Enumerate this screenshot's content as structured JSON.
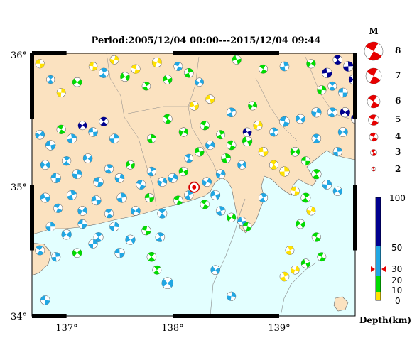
{
  "title": "Period:2005/12/04 00:00---2015/12/04 09:44",
  "axes": {
    "lat_labels": [
      "36°",
      "35°",
      "34°"
    ],
    "lon_labels": [
      "137°",
      "138°",
      "139°"
    ]
  },
  "legend": {
    "magnitude_header": "M",
    "magnitudes": [
      "8",
      "7",
      "6",
      "5",
      "4",
      "3",
      "2"
    ],
    "depth_ticks": [
      "100",
      "50",
      "30",
      "20",
      "10",
      "0"
    ],
    "depth_unit": "Depth(km)"
  },
  "colors": {
    "land": "#fbe2c0",
    "sea": "#e3ffff",
    "depth_0_10": "#ffe100",
    "depth_10_30": "#00dc00",
    "depth_30_50": "#21a7e3",
    "depth_50_100": "#00008f",
    "epicenter": "#e60000"
  },
  "events": [
    {
      "lon": 136.75,
      "lat": 35.92,
      "m": 3.5,
      "c": "#ffe100"
    },
    {
      "lon": 136.85,
      "lat": 35.8,
      "m": 3.2,
      "c": "#21a7e3"
    },
    {
      "lon": 136.95,
      "lat": 35.7,
      "m": 3.4,
      "c": "#ffe100"
    },
    {
      "lon": 137.1,
      "lat": 35.78,
      "m": 3.6,
      "c": "#00dc00"
    },
    {
      "lon": 137.25,
      "lat": 35.9,
      "m": 3.3,
      "c": "#ffe100"
    },
    {
      "lon": 137.35,
      "lat": 35.85,
      "m": 3.8,
      "c": "#21a7e3"
    },
    {
      "lon": 137.45,
      "lat": 35.95,
      "m": 3.4,
      "c": "#ffe100"
    },
    {
      "lon": 137.55,
      "lat": 35.82,
      "m": 3.6,
      "c": "#00dc00"
    },
    {
      "lon": 137.65,
      "lat": 35.88,
      "m": 3.5,
      "c": "#ffe100"
    },
    {
      "lon": 137.75,
      "lat": 35.75,
      "m": 3.3,
      "c": "#00dc00"
    },
    {
      "lon": 137.85,
      "lat": 35.93,
      "m": 3.7,
      "c": "#ffe100"
    },
    {
      "lon": 137.95,
      "lat": 35.8,
      "m": 3.5,
      "c": "#00dc00"
    },
    {
      "lon": 138.05,
      "lat": 35.9,
      "m": 3.4,
      "c": "#21a7e3"
    },
    {
      "lon": 138.15,
      "lat": 35.85,
      "m": 3.6,
      "c": "#00dc00"
    },
    {
      "lon": 138.25,
      "lat": 35.78,
      "m": 3.3,
      "c": "#21a7e3"
    },
    {
      "lon": 138.6,
      "lat": 35.95,
      "m": 3.5,
      "c": "#00dc00"
    },
    {
      "lon": 138.85,
      "lat": 35.88,
      "m": 3.4,
      "c": "#00dc00"
    },
    {
      "lon": 139.05,
      "lat": 35.9,
      "m": 3.6,
      "c": "#21a7e3"
    },
    {
      "lon": 139.3,
      "lat": 35.92,
      "m": 3.5,
      "c": "#00dc00"
    },
    {
      "lon": 139.45,
      "lat": 35.85,
      "m": 3.8,
      "c": "#00008f"
    },
    {
      "lon": 139.55,
      "lat": 35.95,
      "m": 3.6,
      "c": "#00008f"
    },
    {
      "lon": 139.65,
      "lat": 35.9,
      "m": 3.9,
      "c": "#00008f"
    },
    {
      "lon": 139.7,
      "lat": 35.8,
      "m": 3.7,
      "c": "#00008f"
    },
    {
      "lon": 139.6,
      "lat": 35.7,
      "m": 3.6,
      "c": "#21a7e3"
    },
    {
      "lon": 139.5,
      "lat": 35.75,
      "m": 3.4,
      "c": "#21a7e3"
    },
    {
      "lon": 139.4,
      "lat": 35.72,
      "m": 3.5,
      "c": "#00dc00"
    },
    {
      "lon": 139.62,
      "lat": 35.55,
      "m": 3.8,
      "c": "#00008f"
    },
    {
      "lon": 139.72,
      "lat": 35.5,
      "m": 3.6,
      "c": "#00008f"
    },
    {
      "lon": 139.5,
      "lat": 35.55,
      "m": 3.7,
      "c": "#21a7e3"
    },
    {
      "lon": 139.35,
      "lat": 35.55,
      "m": 3.8,
      "c": "#21a7e3"
    },
    {
      "lon": 139.2,
      "lat": 35.5,
      "m": 3.6,
      "c": "#21a7e3"
    },
    {
      "lon": 139.05,
      "lat": 35.48,
      "m": 3.9,
      "c": "#21a7e3"
    },
    {
      "lon": 138.95,
      "lat": 35.4,
      "m": 3.4,
      "c": "#21a7e3"
    },
    {
      "lon": 138.8,
      "lat": 35.45,
      "m": 3.5,
      "c": "#ffe100"
    },
    {
      "lon": 138.7,
      "lat": 35.33,
      "m": 3.8,
      "c": "#00dc00"
    },
    {
      "lon": 138.55,
      "lat": 35.3,
      "m": 3.6,
      "c": "#00dc00"
    },
    {
      "lon": 138.45,
      "lat": 35.38,
      "m": 3.4,
      "c": "#00dc00"
    },
    {
      "lon": 138.35,
      "lat": 35.3,
      "m": 3.5,
      "c": "#21a7e3"
    },
    {
      "lon": 138.25,
      "lat": 35.25,
      "m": 3.6,
      "c": "#00dc00"
    },
    {
      "lon": 138.15,
      "lat": 35.2,
      "m": 3.3,
      "c": "#21a7e3"
    },
    {
      "lon": 138.5,
      "lat": 35.2,
      "m": 3.7,
      "c": "#00dc00"
    },
    {
      "lon": 138.65,
      "lat": 35.15,
      "m": 3.4,
      "c": "#21a7e3"
    },
    {
      "lon": 138.85,
      "lat": 35.25,
      "m": 3.6,
      "c": "#ffe100"
    },
    {
      "lon": 138.95,
      "lat": 35.15,
      "m": 3.5,
      "c": "#ffe100"
    },
    {
      "lon": 139.05,
      "lat": 35.1,
      "m": 3.8,
      "c": "#ffe100"
    },
    {
      "lon": 139.15,
      "lat": 35.25,
      "m": 3.6,
      "c": "#00dc00"
    },
    {
      "lon": 139.25,
      "lat": 35.18,
      "m": 3.4,
      "c": "#00dc00"
    },
    {
      "lon": 139.35,
      "lat": 35.08,
      "m": 3.8,
      "c": "#00dc00"
    },
    {
      "lon": 139.45,
      "lat": 35.0,
      "m": 3.6,
      "c": "#21a7e3"
    },
    {
      "lon": 139.55,
      "lat": 34.95,
      "m": 3.5,
      "c": "#21a7e3"
    },
    {
      "lon": 139.15,
      "lat": 34.95,
      "m": 3.5,
      "c": "#ffe100"
    },
    {
      "lon": 139.25,
      "lat": 34.9,
      "m": 3.7,
      "c": "#00dc00"
    },
    {
      "lon": 139.3,
      "lat": 34.8,
      "m": 3.4,
      "c": "#ffe100"
    },
    {
      "lon": 139.2,
      "lat": 34.7,
      "m": 3.6,
      "c": "#00dc00"
    },
    {
      "lon": 139.35,
      "lat": 34.6,
      "m": 3.5,
      "c": "#00dc00"
    },
    {
      "lon": 139.1,
      "lat": 34.5,
      "m": 3.4,
      "c": "#ffe100"
    },
    {
      "lon": 139.15,
      "lat": 34.35,
      "m": 3.3,
      "c": "#ffe100"
    },
    {
      "lon": 139.25,
      "lat": 34.4,
      "m": 3.5,
      "c": "#00dc00"
    },
    {
      "lon": 139.4,
      "lat": 34.45,
      "m": 3.4,
      "c": "#00dc00"
    },
    {
      "lon": 139.05,
      "lat": 34.3,
      "m": 3.6,
      "c": "#ffe100"
    },
    {
      "lon": 136.75,
      "lat": 35.38,
      "m": 3.6,
      "c": "#21a7e3"
    },
    {
      "lon": 136.85,
      "lat": 35.3,
      "m": 3.8,
      "c": "#21a7e3"
    },
    {
      "lon": 136.95,
      "lat": 35.42,
      "m": 3.5,
      "c": "#00dc00"
    },
    {
      "lon": 137.05,
      "lat": 35.35,
      "m": 3.7,
      "c": "#21a7e3"
    },
    {
      "lon": 137.15,
      "lat": 35.45,
      "m": 3.4,
      "c": "#00008f"
    },
    {
      "lon": 137.25,
      "lat": 35.4,
      "m": 3.6,
      "c": "#21a7e3"
    },
    {
      "lon": 137.35,
      "lat": 35.48,
      "m": 3.5,
      "c": "#00008f"
    },
    {
      "lon": 137.45,
      "lat": 35.35,
      "m": 3.7,
      "c": "#21a7e3"
    },
    {
      "lon": 136.8,
      "lat": 35.15,
      "m": 3.6,
      "c": "#21a7e3"
    },
    {
      "lon": 136.9,
      "lat": 35.05,
      "m": 3.8,
      "c": "#21a7e3"
    },
    {
      "lon": 137.0,
      "lat": 35.18,
      "m": 3.5,
      "c": "#21a7e3"
    },
    {
      "lon": 137.1,
      "lat": 35.08,
      "m": 3.7,
      "c": "#21a7e3"
    },
    {
      "lon": 137.2,
      "lat": 35.2,
      "m": 3.6,
      "c": "#21a7e3"
    },
    {
      "lon": 137.3,
      "lat": 35.02,
      "m": 3.8,
      "c": "#21a7e3"
    },
    {
      "lon": 137.4,
      "lat": 35.12,
      "m": 3.5,
      "c": "#21a7e3"
    },
    {
      "lon": 137.5,
      "lat": 35.05,
      "m": 3.6,
      "c": "#21a7e3"
    },
    {
      "lon": 137.6,
      "lat": 35.15,
      "m": 3.4,
      "c": "#00dc00"
    },
    {
      "lon": 137.7,
      "lat": 35.0,
      "m": 3.7,
      "c": "#21a7e3"
    },
    {
      "lon": 137.8,
      "lat": 35.1,
      "m": 3.5,
      "c": "#21a7e3"
    },
    {
      "lon": 137.9,
      "lat": 35.02,
      "m": 3.6,
      "c": "#21a7e3"
    },
    {
      "lon": 136.8,
      "lat": 34.9,
      "m": 3.7,
      "c": "#21a7e3"
    },
    {
      "lon": 136.92,
      "lat": 34.82,
      "m": 3.5,
      "c": "#21a7e3"
    },
    {
      "lon": 137.05,
      "lat": 34.92,
      "m": 3.8,
      "c": "#21a7e3"
    },
    {
      "lon": 137.15,
      "lat": 34.8,
      "m": 3.6,
      "c": "#21a7e3"
    },
    {
      "lon": 137.28,
      "lat": 34.88,
      "m": 3.7,
      "c": "#21a7e3"
    },
    {
      "lon": 137.4,
      "lat": 34.78,
      "m": 3.5,
      "c": "#21a7e3"
    },
    {
      "lon": 137.52,
      "lat": 34.9,
      "m": 3.8,
      "c": "#21a7e3"
    },
    {
      "lon": 137.65,
      "lat": 34.8,
      "m": 3.6,
      "c": "#21a7e3"
    },
    {
      "lon": 137.78,
      "lat": 34.9,
      "m": 3.5,
      "c": "#00dc00"
    },
    {
      "lon": 137.9,
      "lat": 34.78,
      "m": 3.7,
      "c": "#21a7e3"
    },
    {
      "lon": 136.85,
      "lat": 34.68,
      "m": 3.6,
      "c": "#21a7e3"
    },
    {
      "lon": 137.0,
      "lat": 34.62,
      "m": 3.8,
      "c": "#21a7e3"
    },
    {
      "lon": 137.15,
      "lat": 34.7,
      "m": 3.5,
      "c": "#21a7e3"
    },
    {
      "lon": 137.3,
      "lat": 34.6,
      "m": 3.7,
      "c": "#21a7e3"
    },
    {
      "lon": 137.45,
      "lat": 34.68,
      "m": 3.6,
      "c": "#21a7e3"
    },
    {
      "lon": 137.6,
      "lat": 34.58,
      "m": 3.8,
      "c": "#21a7e3"
    },
    {
      "lon": 137.75,
      "lat": 34.65,
      "m": 3.5,
      "c": "#00dc00"
    },
    {
      "lon": 137.88,
      "lat": 34.6,
      "m": 3.6,
      "c": "#21a7e3"
    },
    {
      "lon": 138.0,
      "lat": 35.05,
      "m": 3.7,
      "c": "#21a7e3"
    },
    {
      "lon": 138.1,
      "lat": 35.1,
      "m": 3.5,
      "c": "#00dc00"
    },
    {
      "lon": 138.05,
      "lat": 34.88,
      "m": 3.6,
      "c": "#00dc00"
    },
    {
      "lon": 138.15,
      "lat": 34.92,
      "m": 3.5,
      "c": "#21a7e3"
    },
    {
      "lon": 138.32,
      "lat": 35.02,
      "m": 3.6,
      "c": "#21a7e3"
    },
    {
      "lon": 138.4,
      "lat": 34.92,
      "m": 3.7,
      "c": "#21a7e3"
    },
    {
      "lon": 138.3,
      "lat": 34.85,
      "m": 3.5,
      "c": "#00dc00"
    },
    {
      "lon": 138.45,
      "lat": 34.8,
      "m": 3.6,
      "c": "#21a7e3"
    },
    {
      "lon": 138.55,
      "lat": 34.75,
      "m": 3.5,
      "c": "#00dc00"
    },
    {
      "lon": 138.65,
      "lat": 34.72,
      "m": 3.4,
      "c": "#21a7e3"
    },
    {
      "lon": 136.75,
      "lat": 34.5,
      "m": 3.7,
      "c": "#21a7e3"
    },
    {
      "lon": 136.9,
      "lat": 34.45,
      "m": 3.5,
      "c": "#21a7e3"
    },
    {
      "lon": 137.1,
      "lat": 34.48,
      "m": 3.6,
      "c": "#00dc00"
    },
    {
      "lon": 137.5,
      "lat": 34.48,
      "m": 3.8,
      "c": "#21a7e3"
    },
    {
      "lon": 137.8,
      "lat": 34.45,
      "m": 3.6,
      "c": "#00dc00"
    },
    {
      "lon": 137.25,
      "lat": 34.55,
      "m": 3.5,
      "c": "#21a7e3"
    },
    {
      "lon": 137.95,
      "lat": 34.25,
      "m": 4.2,
      "c": "#21a7e3"
    },
    {
      "lon": 136.8,
      "lat": 34.12,
      "m": 3.6,
      "c": "#21a7e3"
    },
    {
      "lon": 137.85,
      "lat": 34.35,
      "m": 3.4,
      "c": "#00dc00"
    },
    {
      "lon": 138.55,
      "lat": 34.15,
      "m": 3.5,
      "c": "#21a7e3"
    },
    {
      "lon": 138.4,
      "lat": 34.35,
      "m": 3.6,
      "c": "#21a7e3"
    },
    {
      "lon": 138.7,
      "lat": 34.68,
      "m": 3.4,
      "c": "#00dc00"
    },
    {
      "lon": 138.85,
      "lat": 34.9,
      "m": 3.5,
      "c": "#21a7e3"
    },
    {
      "lon": 138.45,
      "lat": 35.08,
      "m": 3.6,
      "c": "#21a7e3"
    },
    {
      "lon": 138.7,
      "lat": 35.4,
      "m": 3.4,
      "c": "#00008f"
    },
    {
      "lon": 138.3,
      "lat": 35.45,
      "m": 3.5,
      "c": "#00dc00"
    },
    {
      "lon": 138.55,
      "lat": 35.55,
      "m": 3.6,
      "c": "#21a7e3"
    },
    {
      "lon": 138.75,
      "lat": 35.6,
      "m": 3.4,
      "c": "#00dc00"
    },
    {
      "lon": 138.2,
      "lat": 35.6,
      "m": 3.5,
      "c": "#ffe100"
    },
    {
      "lon": 137.95,
      "lat": 35.5,
      "m": 3.6,
      "c": "#00dc00"
    },
    {
      "lon": 137.8,
      "lat": 35.35,
      "m": 3.4,
      "c": "#00dc00"
    },
    {
      "lon": 138.1,
      "lat": 35.4,
      "m": 3.5,
      "c": "#00dc00"
    },
    {
      "lon": 138.35,
      "lat": 35.65,
      "m": 3.4,
      "c": "#ffe100"
    },
    {
      "lon": 139.35,
      "lat": 35.35,
      "m": 3.6,
      "c": "#21a7e3"
    },
    {
      "lon": 139.55,
      "lat": 35.25,
      "m": 3.5,
      "c": "#21a7e3"
    },
    {
      "lon": 139.6,
      "lat": 35.4,
      "m": 3.7,
      "c": "#21a7e3"
    }
  ],
  "main_event": {
    "lon": 138.2,
    "lat": 34.98
  }
}
